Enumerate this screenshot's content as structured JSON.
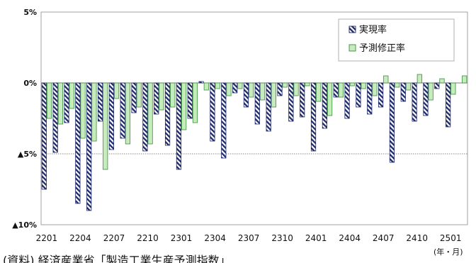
{
  "chart_data": {
    "type": "bar",
    "categories": [
      "2201",
      "2202",
      "2203",
      "2204",
      "2205",
      "2206",
      "2207",
      "2208",
      "2209",
      "2210",
      "2211",
      "2212",
      "2301",
      "2302",
      "2303",
      "2304",
      "2305",
      "2306",
      "2307",
      "2308",
      "2309",
      "2310",
      "2311",
      "2312",
      "2401",
      "2402",
      "2403",
      "2404",
      "2405",
      "2406",
      "2407",
      "2408",
      "2409",
      "2410",
      "2411",
      "2412",
      "2501",
      "2502"
    ],
    "series": [
      {
        "name": "実現率",
        "values": [
          -7.5,
          -4.9,
          -2.8,
          -8.5,
          -9.0,
          -2.7,
          -4.7,
          -3.9,
          -2.1,
          -4.8,
          -2.2,
          -4.4,
          -6.1,
          -2.5,
          0.1,
          -4.1,
          -5.3,
          -0.7,
          -1.7,
          -2.9,
          -3.4,
          -0.9,
          -2.7,
          -2.4,
          -4.8,
          -3.2,
          -1.0,
          -2.5,
          -1.7,
          -2.2,
          -1.7,
          -5.6,
          -1.3,
          -2.7,
          -2.3,
          -0.4,
          -3.1,
          null
        ]
      },
      {
        "name": "予測修正率",
        "values": [
          -2.5,
          -2.9,
          -1.8,
          -3.9,
          -4.1,
          -6.1,
          -1.1,
          -4.3,
          -1.7,
          -4.3,
          -1.9,
          -1.7,
          -3.3,
          -2.8,
          -0.5,
          -0.4,
          -0.9,
          -0.4,
          -1.0,
          -1.2,
          -1.7,
          -0.3,
          -0.9,
          -0.2,
          -1.3,
          -2.3,
          -1.0,
          -0.2,
          -0.4,
          -0.9,
          0.5,
          -0.3,
          -0.5,
          0.6,
          -1.2,
          0.3,
          -0.8,
          0.5
        ]
      }
    ],
    "x_tick_labels": [
      "2201",
      "2204",
      "2207",
      "2210",
      "2301",
      "2304",
      "2307",
      "2310",
      "2401",
      "2404",
      "2407",
      "2410",
      "2501"
    ],
    "y_ticks": [
      5,
      0,
      -5,
      -10
    ],
    "y_tick_labels": [
      "5%",
      "0%",
      "▲5%",
      "▲10%"
    ],
    "ylim": [
      -10,
      5
    ],
    "reference_line": -5,
    "grid": false,
    "legend_position": "top-right",
    "xlabel": "(年・月)",
    "ylabel": "",
    "colors": {
      "realization": "#1f2a6b",
      "revision_fill": "#c6ebbd",
      "revision_stroke": "#3a8f3a",
      "frame": "#a0a0a0"
    }
  },
  "source_note": "(資料) 経済産業省「製造工業生産予測指数」"
}
